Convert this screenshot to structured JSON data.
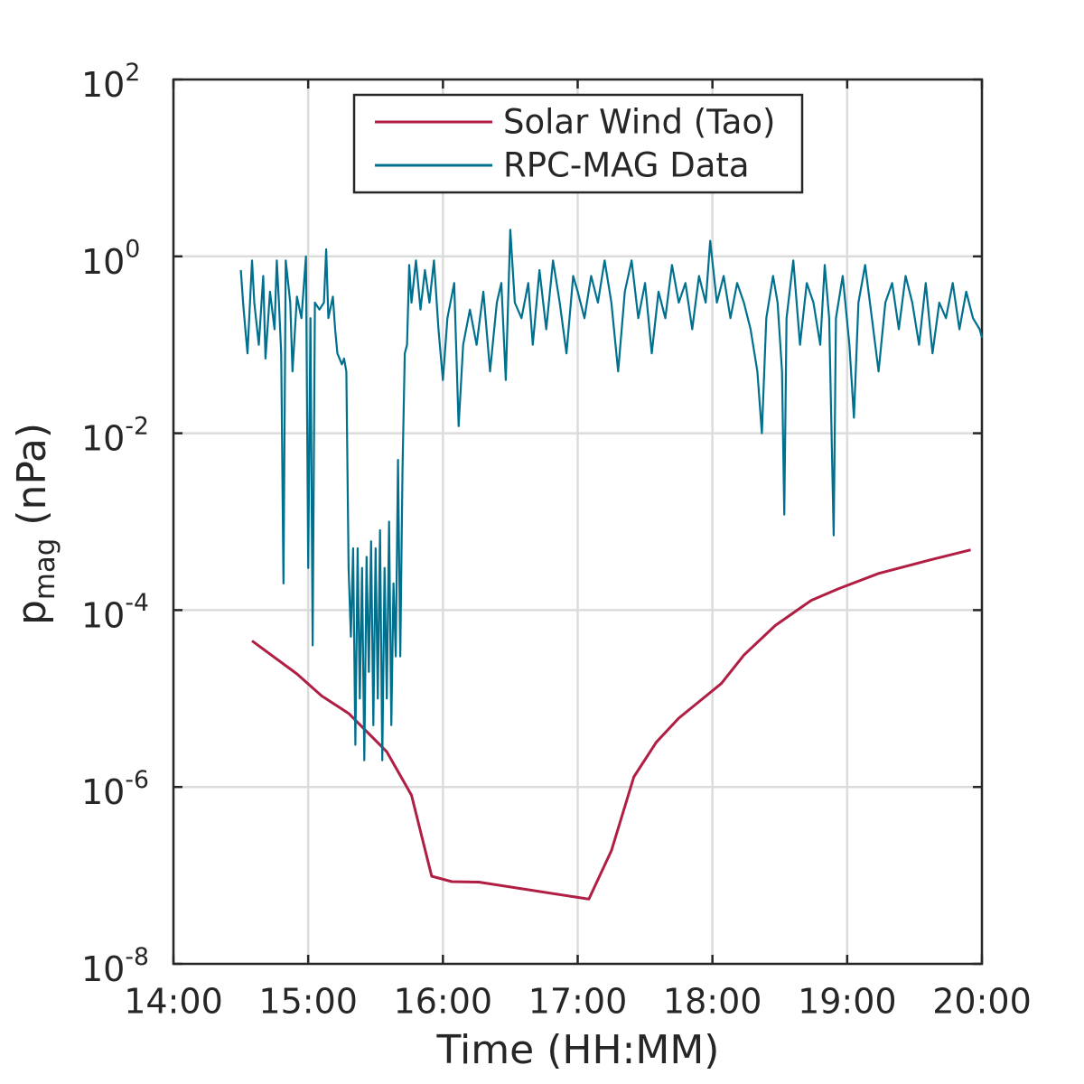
{
  "chart_data": {
    "type": "line",
    "xlabel": "Time (HH:MM)",
    "ylabel": "p_mag (nPa)",
    "xlim": [
      "14:00",
      "20:00"
    ],
    "xticks": [
      "14:00",
      "15:00",
      "16:00",
      "17:00",
      "18:00",
      "19:00",
      "20:00"
    ],
    "ylim": [
      1e-08,
      100
    ],
    "yticks": [
      {
        "value": 1e-08,
        "label": "10^-8"
      },
      {
        "value": 1e-06,
        "label": "10^-6"
      },
      {
        "value": 0.0001,
        "label": "10^-4"
      },
      {
        "value": 0.01,
        "label": "10^-2"
      },
      {
        "value": 1,
        "label": "10^0"
      },
      {
        "value": 100,
        "label": "10^2"
      }
    ],
    "log_y": true,
    "grid": true,
    "legend": "top",
    "series": [
      {
        "name": "Solar Wind (Tao)",
        "color": "#b01e44",
        "x": [
          "14:35",
          "14:55",
          "15:06",
          "15:18",
          "15:35",
          "15:46",
          "15:55",
          "16:04",
          "16:16",
          "17:05",
          "17:15",
          "17:25",
          "17:35",
          "17:45",
          "18:04",
          "18:14",
          "18:28",
          "18:44",
          "18:56",
          "19:14",
          "19:37",
          "19:55"
        ],
        "values": [
          4.5e-05,
          1.9e-05,
          1.07e-05,
          6.8e-06,
          2.5e-06,
          8.1e-07,
          9.8e-08,
          8.5e-08,
          8.4e-08,
          5.4e-08,
          1.9e-07,
          1.3e-06,
          3.2e-06,
          6e-06,
          1.48e-05,
          3.1e-05,
          6.7e-05,
          0.000129,
          0.000174,
          0.00026,
          0.00037,
          0.00048
        ]
      },
      {
        "name": "RPC-MAG Data",
        "color": "#00708f",
        "x": [
          "14:30",
          "14:31",
          "14:32",
          "14:33",
          "14:35",
          "14:36",
          "14:38",
          "14:40",
          "14:41",
          "14:43",
          "14:45",
          "14:46",
          "14:47",
          "14:48",
          "14:49",
          "14:50",
          "14:52",
          "14:53",
          "14:55",
          "14:57",
          "14:59",
          "15:00",
          "15:01",
          "15:02",
          "15:03",
          "15:05",
          "15:07",
          "15:08",
          "15:09",
          "15:11",
          "15:12",
          "15:13",
          "15:15",
          "15:16",
          "15:17",
          "15:18",
          "15:19",
          "15:20",
          "15:21",
          "15:22",
          "15:23",
          "15:24",
          "15:25",
          "15:26",
          "15:27",
          "15:28",
          "15:29",
          "15:30",
          "15:31",
          "15:32",
          "15:33",
          "15:34",
          "15:35",
          "15:36",
          "15:37",
          "15:38",
          "15:39",
          "15:40",
          "15:41",
          "15:42",
          "15:43",
          "15:44",
          "15:45",
          "15:46",
          "15:48",
          "15:50",
          "15:52",
          "15:54",
          "15:56",
          "15:58",
          "16:00",
          "16:02",
          "16:05",
          "16:07",
          "16:09",
          "16:12",
          "16:15",
          "16:18",
          "16:21",
          "16:24",
          "16:26",
          "16:28",
          "16:30",
          "16:32",
          "16:35",
          "16:38",
          "16:40",
          "16:43",
          "16:46",
          "16:49",
          "16:52",
          "16:55",
          "16:58",
          "17:00",
          "17:03",
          "17:06",
          "17:09",
          "17:12",
          "17:15",
          "17:18",
          "17:21",
          "17:24",
          "17:27",
          "17:30",
          "17:33",
          "17:36",
          "17:39",
          "17:42",
          "17:45",
          "17:48",
          "17:51",
          "17:54",
          "17:57",
          "17:59",
          "18:02",
          "18:05",
          "18:08",
          "18:11",
          "18:14",
          "18:17",
          "18:20",
          "18:22",
          "18:24",
          "18:27",
          "18:29",
          "18:31",
          "18:32",
          "18:33",
          "18:36",
          "18:39",
          "18:42",
          "18:45",
          "18:48",
          "18:50",
          "18:52",
          "18:54",
          "18:55",
          "18:58",
          "19:01",
          "19:03",
          "19:05",
          "19:08",
          "19:11",
          "19:14",
          "19:17",
          "19:20",
          "19:23",
          "19:26",
          "19:29",
          "19:32",
          "19:35",
          "19:38",
          "19:41",
          "19:44",
          "19:47",
          "19:50",
          "19:53",
          "19:56",
          "19:59",
          "20:00"
        ],
        "values": [
          0.7,
          0.3,
          0.15,
          0.08,
          0.9,
          0.3,
          0.1,
          0.6,
          0.07,
          0.4,
          0.15,
          0.9,
          0.3,
          0.08,
          0.0002,
          0.9,
          0.3,
          0.05,
          0.35,
          0.2,
          1.0,
          0.0003,
          0.2,
          4e-05,
          0.3,
          0.25,
          0.3,
          1.2,
          0.2,
          0.35,
          0.15,
          0.08,
          0.06,
          0.07,
          0.05,
          0.0003,
          5e-05,
          0.0005,
          3e-06,
          0.0005,
          1e-05,
          0.0003,
          2e-06,
          0.0004,
          2e-05,
          0.0006,
          5e-06,
          0.0005,
          1e-05,
          0.0008,
          2e-06,
          0.0003,
          1e-05,
          0.001,
          5e-06,
          0.0002,
          3e-05,
          0.005,
          3e-05,
          0.004,
          0.08,
          0.1,
          0.8,
          0.3,
          0.9,
          0.25,
          0.7,
          0.3,
          0.9,
          0.15,
          0.04,
          0.2,
          0.5,
          0.012,
          0.1,
          0.25,
          0.1,
          0.4,
          0.05,
          0.3,
          0.5,
          0.04,
          2.0,
          0.3,
          0.2,
          0.5,
          0.1,
          0.7,
          0.15,
          0.9,
          0.3,
          0.08,
          0.6,
          0.4,
          0.2,
          0.6,
          0.3,
          0.9,
          0.3,
          0.05,
          0.4,
          0.9,
          0.2,
          0.5,
          0.08,
          0.4,
          0.2,
          0.8,
          0.3,
          0.5,
          0.15,
          0.6,
          0.3,
          1.5,
          0.3,
          0.6,
          0.2,
          0.5,
          0.3,
          0.15,
          0.05,
          0.01,
          0.2,
          0.6,
          0.3,
          0.05,
          0.0012,
          0.2,
          0.9,
          0.1,
          0.5,
          0.3,
          0.1,
          0.8,
          0.2,
          0.0007,
          0.2,
          0.6,
          0.1,
          0.015,
          0.3,
          0.8,
          0.2,
          0.05,
          0.3,
          0.5,
          0.15,
          0.6,
          0.3,
          0.1,
          0.5,
          0.08,
          0.3,
          0.2,
          0.5,
          0.15,
          0.4,
          0.2,
          0.15,
          0.12
        ]
      }
    ]
  }
}
